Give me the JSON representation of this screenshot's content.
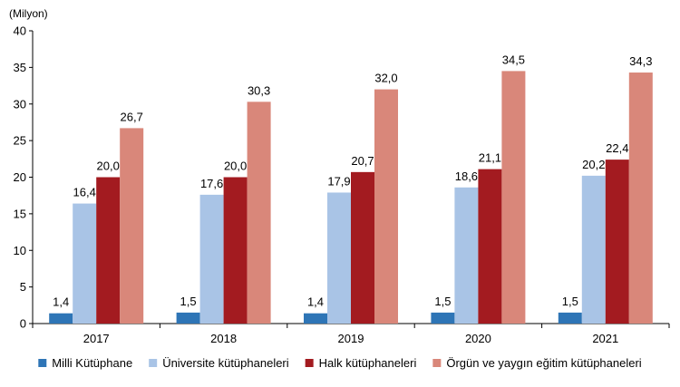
{
  "chart_data": {
    "type": "bar",
    "unit_label": "(Milyon)",
    "categories": [
      "2017",
      "2018",
      "2019",
      "2020",
      "2021"
    ],
    "ylim": [
      0,
      40
    ],
    "yticks": [
      0,
      5,
      10,
      15,
      20,
      25,
      30,
      35,
      40
    ],
    "grid": false,
    "legend_position": "bottom",
    "series": [
      {
        "name": "Milli Kütüphane",
        "color": "#2e75b6",
        "values": [
          1.4,
          1.5,
          1.4,
          1.5,
          1.5
        ],
        "labels": [
          "1,4",
          "1,5",
          "1,4",
          "1,5",
          "1,5"
        ]
      },
      {
        "name": "Üniversite kütüphaneleri",
        "color": "#a9c4e6",
        "values": [
          16.4,
          17.6,
          17.9,
          18.6,
          20.2
        ],
        "labels": [
          "16,4",
          "17,6",
          "17,9",
          "18,6",
          "20,2"
        ]
      },
      {
        "name": "Halk kütüphaneleri",
        "color": "#a31b20",
        "values": [
          20.0,
          20.0,
          20.7,
          21.1,
          22.4
        ],
        "labels": [
          "20,0",
          "20,0",
          "20,7",
          "21,1",
          "22,4"
        ]
      },
      {
        "name": "Örgün ve yaygın eğitim kütüphaneleri",
        "color": "#d9877a",
        "values": [
          26.7,
          30.3,
          32.0,
          34.5,
          34.3
        ],
        "labels": [
          "26,7",
          "30,3",
          "32,0",
          "34,5",
          "34,3"
        ]
      }
    ]
  }
}
